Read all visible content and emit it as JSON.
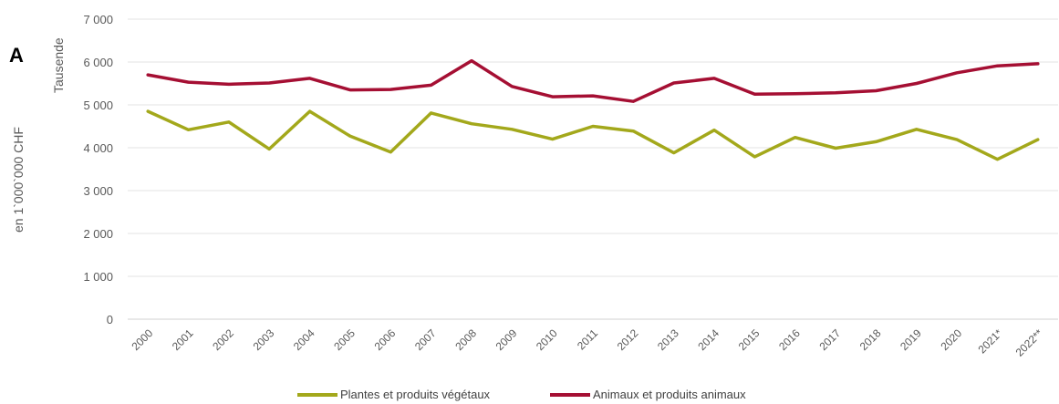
{
  "panel_letter": "A",
  "y_axis_outer_label": "en 1`000`000 CHF",
  "y_axis_inner_label": "Tausende",
  "chart_data": {
    "type": "line",
    "x": [
      "2000",
      "2001",
      "2002",
      "2003",
      "2004",
      "2005",
      "2006",
      "2007",
      "2008",
      "2009",
      "2010",
      "2011",
      "2012",
      "2013",
      "2014",
      "2015",
      "2016",
      "2017",
      "2018",
      "2019",
      "2020",
      "2021*",
      "2022**"
    ],
    "ylim": [
      0,
      7000
    ],
    "yticks": [
      0,
      1000,
      2000,
      3000,
      4000,
      5000,
      6000,
      7000
    ],
    "ytick_labels": [
      "0",
      "1 000",
      "2 000",
      "3 000",
      "4 000",
      "5 000",
      "6 000",
      "7 000"
    ],
    "grid": true,
    "legend_position": "bottom-center",
    "series": [
      {
        "name": "Plantes et produits végétaux",
        "color": "#a3a81b",
        "values": [
          4850,
          4420,
          4600,
          3970,
          4850,
          4270,
          3900,
          4810,
          4560,
          4430,
          4200,
          4500,
          4390,
          3880,
          4410,
          3790,
          4240,
          3990,
          4140,
          4430,
          4190,
          3730,
          4190
        ]
      },
      {
        "name": "Animaux et produits animaux",
        "color": "#a50f33",
        "values": [
          5700,
          5530,
          5480,
          5510,
          5620,
          5350,
          5360,
          5460,
          6030,
          5430,
          5190,
          5210,
          5080,
          5510,
          5620,
          5250,
          5260,
          5280,
          5330,
          5500,
          5750,
          5910,
          5960
        ]
      }
    ]
  }
}
